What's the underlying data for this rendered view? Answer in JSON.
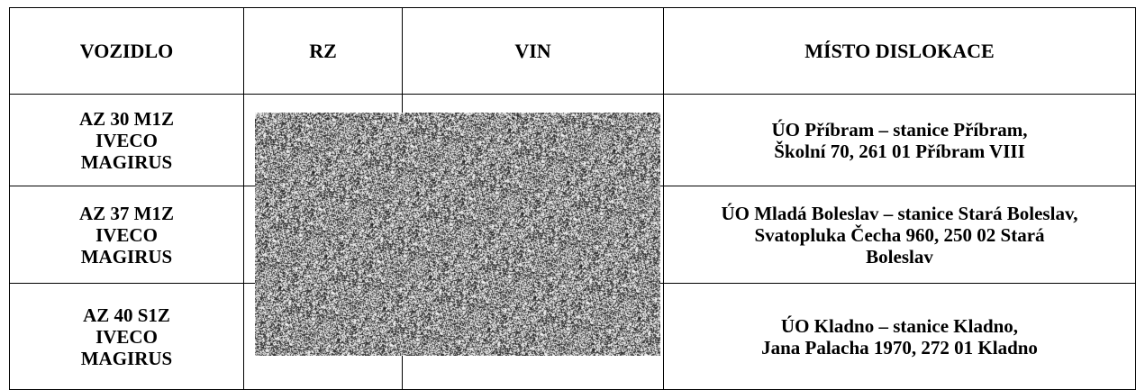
{
  "table": {
    "headers": [
      "VOZIDLO",
      "RZ",
      "VIN",
      "MÍSTO DISLOKACE"
    ],
    "rows": [
      {
        "vozidlo": "AZ 30 M1Z\nIVECO\nMAGIRUS",
        "rz": "",
        "vin": "",
        "misto": "ÚO Příbram – stanice Příbram,\nŠkolní 70, 261 01  Příbram VIII"
      },
      {
        "vozidlo": "AZ 37 M1Z\nIVECO\nMAGIRUS",
        "rz": "",
        "vin": "",
        "misto": "ÚO Mladá Boleslav – stanice Stará Boleslav,\nSvatopluka Čecha 960, 250 02  Stará\nBoleslav"
      },
      {
        "vozidlo": "AZ 40 S1Z\nIVECO\nMAGIRUS",
        "rz": "",
        "vin": "",
        "misto": "ÚO Kladno – stanice Kladno,\nJana Palacha 1970, 272 01  Kladno"
      }
    ]
  },
  "redaction": {
    "icon": "noise-redaction"
  }
}
